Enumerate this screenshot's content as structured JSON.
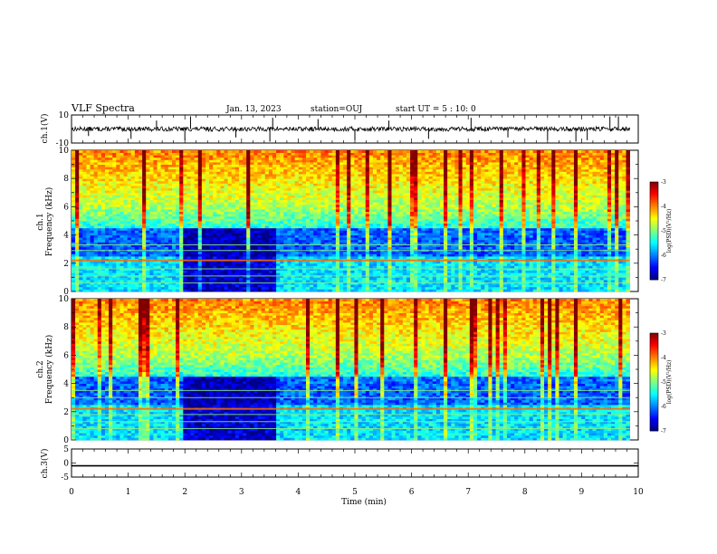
{
  "header": {
    "title": "VLF Spectra",
    "date": "Jan. 13, 2023",
    "station": "station=OUJ",
    "start": "start UT =  5 : 10: 0"
  },
  "chart_data": [
    {
      "type": "line",
      "name": "ch1-waveform",
      "ylabel": "ch.1(V)",
      "ylim": [
        -10,
        10
      ],
      "y_ticks": [
        "10",
        "-10"
      ],
      "baseline": 0,
      "spikes": [
        {
          "t": 0.3,
          "v": -5
        },
        {
          "t": 1.05,
          "v": -7
        },
        {
          "t": 1.5,
          "v": 6
        },
        {
          "t": 2.0,
          "v": -8
        },
        {
          "t": 2.1,
          "v": 9
        },
        {
          "t": 2.9,
          "v": -6
        },
        {
          "t": 3.5,
          "v": -9
        },
        {
          "t": 3.55,
          "v": 8
        },
        {
          "t": 4.35,
          "v": 7
        },
        {
          "t": 5.0,
          "v": -8
        },
        {
          "t": 5.6,
          "v": 6
        },
        {
          "t": 6.3,
          "v": -7
        },
        {
          "t": 7.05,
          "v": 8
        },
        {
          "t": 7.7,
          "v": -6
        },
        {
          "t": 8.4,
          "v": -8
        },
        {
          "t": 8.9,
          "v": -9
        },
        {
          "t": 9.1,
          "v": -8
        },
        {
          "t": 9.5,
          "v": 9
        },
        {
          "t": 9.65,
          "v": 9
        }
      ]
    },
    {
      "type": "heatmap",
      "name": "ch1-spectrogram",
      "ylabel": "ch.1\nFrequency (kHz)",
      "xlim": [
        0,
        10
      ],
      "ylim": [
        0,
        10
      ],
      "y_ticks": [
        "0",
        "2",
        "4",
        "6",
        "8",
        "10"
      ],
      "data_end_min": 9.85,
      "quiet_interval_min": [
        2.0,
        3.6
      ],
      "lines_khz": [
        2.2,
        2.9,
        3.3,
        0.6,
        1.1,
        1.6
      ],
      "colorbar": {
        "label": "log(PSD)(V²/Hz)",
        "range": [
          -7,
          -3
        ],
        "ticks": [
          "-3",
          "-4",
          "-5",
          "-6",
          "-7"
        ]
      }
    },
    {
      "type": "heatmap",
      "name": "ch2-spectrogram",
      "ylabel": "ch.2\nFrequency (kHz)",
      "xlim": [
        0,
        10
      ],
      "ylim": [
        0,
        10
      ],
      "y_ticks": [
        "0",
        "2",
        "4",
        "6",
        "8",
        "10"
      ],
      "data_end_min": 9.85,
      "quiet_interval_min": [
        2.0,
        3.6
      ],
      "lines_khz": [
        2.2,
        3.0,
        3.5,
        0.8,
        1.3,
        1.8
      ],
      "colorbar": {
        "label": "log(PSD)(V²/Hz)",
        "range": [
          -7,
          -3
        ],
        "ticks": [
          "-3",
          "-4",
          "-5",
          "-6",
          "-7"
        ]
      }
    },
    {
      "type": "line",
      "name": "ch3-waveform",
      "ylabel": "ch.3(V)",
      "ylim": [
        -5,
        5
      ],
      "y_ticks": [
        "5",
        "0",
        "-5"
      ],
      "baseline": -1
    }
  ],
  "x_axis": {
    "label": "Time (min)",
    "ticks": [
      "0",
      "1",
      "2",
      "3",
      "4",
      "5",
      "6",
      "7",
      "8",
      "9",
      "10"
    ]
  },
  "colors": {
    "low": "#000080",
    "high": "#ff0000",
    "trace": "#000000"
  }
}
